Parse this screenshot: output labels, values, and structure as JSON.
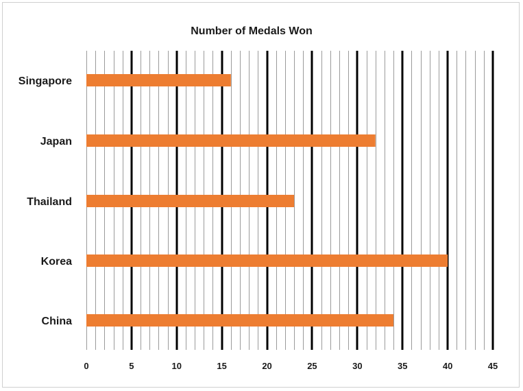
{
  "chart_data": {
    "type": "bar",
    "orientation": "horizontal",
    "title": "Number of Medals Won",
    "xlabel": "",
    "ylabel": "",
    "categories": [
      "Singapore",
      "Japan",
      "Thailand",
      "Korea",
      "China"
    ],
    "values": [
      16,
      32,
      23,
      40,
      34
    ],
    "xlim": [
      0,
      45
    ],
    "major_ticks": [
      0,
      5,
      10,
      15,
      20,
      25,
      30,
      35,
      40,
      45
    ],
    "tick_labels": [
      "0",
      "5",
      "10",
      "15",
      "20",
      "25",
      "30",
      "35",
      "40",
      "45"
    ],
    "minor_step": 1,
    "grid": true,
    "legend": "none",
    "bar_color": "#ED7D31",
    "major_grid_color": "#000000",
    "minor_grid_color": "#9a9a9a"
  }
}
